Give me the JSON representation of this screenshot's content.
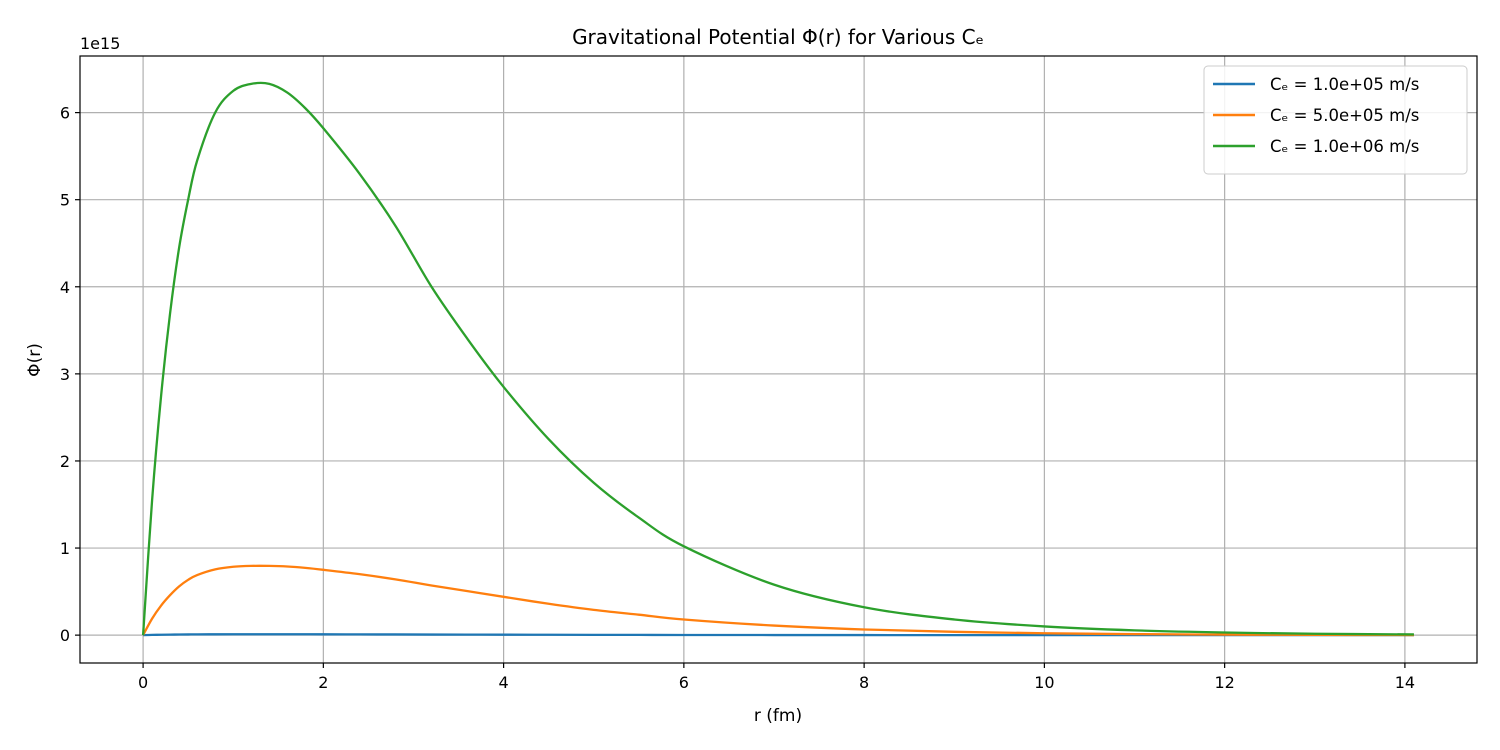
{
  "chart_data": {
    "type": "line",
    "title": "Gravitational Potential Φ(r) for Various Cₑ",
    "xlabel": "r (fm)",
    "ylabel": "Φ(r)",
    "y_offset_text": "1e15",
    "xlim": [
      -0.7,
      14.8
    ],
    "ylim": [
      -0.32,
      6.65
    ],
    "y_scale_factor": 1000000000000000.0,
    "xticks": [
      0,
      2,
      4,
      6,
      8,
      10,
      12,
      14
    ],
    "yticks": [
      0,
      1,
      2,
      3,
      4,
      5,
      6
    ],
    "grid": true,
    "legend_position": "top-right",
    "x": [
      0,
      0.1,
      0.2,
      0.3,
      0.4,
      0.5,
      0.6,
      0.8,
      1.0,
      1.2,
      1.4,
      1.6,
      1.8,
      2.0,
      2.4,
      2.8,
      3.2,
      3.6,
      4.0,
      4.5,
      5.0,
      5.5,
      6.0,
      7.0,
      8.0,
      9.0,
      10.0,
      11.0,
      12.0,
      13.0,
      14.1
    ],
    "series": [
      {
        "name": "Cₑ = 1.0e+05 m/s",
        "color": "#1f77b4",
        "values": [
          0,
          0.0025,
          0.0045,
          0.006,
          0.0072,
          0.0081,
          0.0088,
          0.0096,
          0.01,
          0.0101,
          0.0101,
          0.01,
          0.0098,
          0.0095,
          0.0087,
          0.0078,
          0.0068,
          0.0059,
          0.005,
          0.004,
          0.0032,
          0.0025,
          0.0019,
          0.0011,
          0.0006,
          0.0003,
          0.0002,
          0.0001,
          0.0001,
          0.0,
          0.0
        ]
      },
      {
        "name": "Cₑ = 5.0e+05 m/s",
        "color": "#ff7f0e",
        "values": [
          0,
          0.19,
          0.34,
          0.46,
          0.56,
          0.635,
          0.69,
          0.755,
          0.785,
          0.795,
          0.795,
          0.788,
          0.772,
          0.75,
          0.7,
          0.64,
          0.57,
          0.505,
          0.44,
          0.36,
          0.29,
          0.235,
          0.18,
          0.11,
          0.065,
          0.038,
          0.022,
          0.012,
          0.006,
          0.003,
          0.001
        ]
      },
      {
        "name": "Cₑ = 1.0e+06 m/s",
        "color": "#2ca02c",
        "values": [
          0,
          1.55,
          2.75,
          3.7,
          4.45,
          5.0,
          5.45,
          6.0,
          6.25,
          6.33,
          6.33,
          6.23,
          6.05,
          5.82,
          5.3,
          4.7,
          4.0,
          3.4,
          2.85,
          2.25,
          1.75,
          1.35,
          1.02,
          0.58,
          0.32,
          0.18,
          0.1,
          0.055,
          0.03,
          0.016,
          0.008
        ]
      }
    ]
  }
}
